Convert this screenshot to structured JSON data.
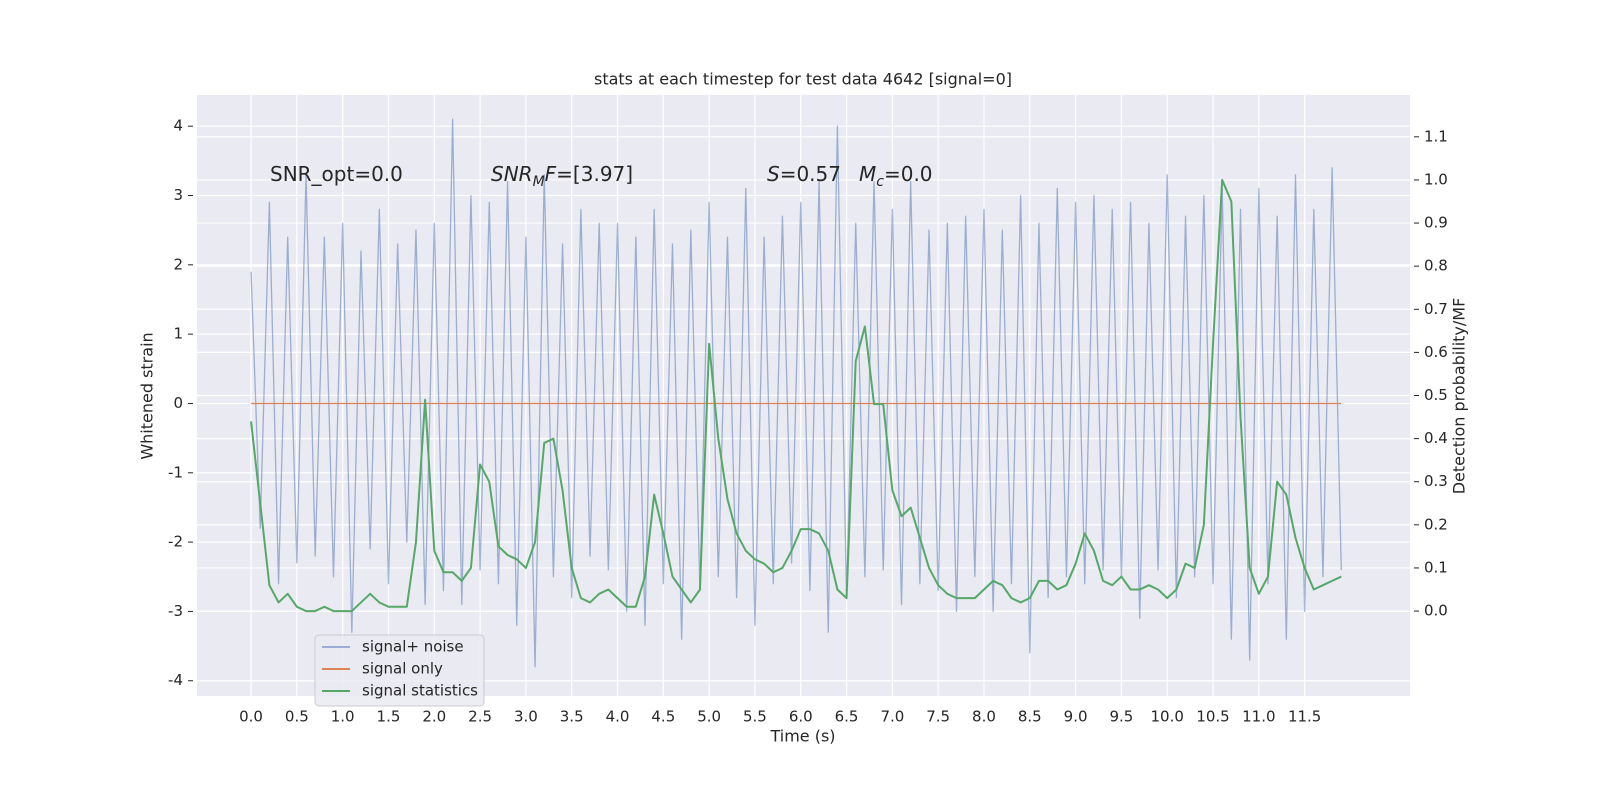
{
  "chart_data": {
    "type": "line",
    "title": "stats at each timestep for test data 4642 [signal=0]",
    "xlabel": "Time (s)",
    "ylabel": "Whitened strain",
    "y2label": "Detection probability/MF",
    "annotations": [
      [
        {
          "text": "SNR_opt=0.0"
        }
      ],
      [
        {
          "text": "SNR",
          "style": "italic"
        },
        {
          "text": "M",
          "style": "sub"
        },
        {
          "text": "F",
          "style": "italic"
        },
        {
          "text": "=[3.97]"
        }
      ],
      [
        {
          "text": "S",
          "style": "italic"
        },
        {
          "text": "=0.57"
        }
      ],
      [
        {
          "text": "M",
          "style": "italic"
        },
        {
          "text": "c",
          "style": "sub"
        },
        {
          "text": "=0.0"
        }
      ]
    ],
    "x": [
      0,
      0.1,
      0.2,
      0.3,
      0.4,
      0.5,
      0.6,
      0.7,
      0.8,
      0.9,
      1,
      1.1,
      1.2,
      1.3,
      1.4,
      1.5,
      1.6,
      1.7,
      1.8,
      1.9,
      2,
      2.1,
      2.2,
      2.3,
      2.4,
      2.5,
      2.6,
      2.7,
      2.8,
      2.9,
      3,
      3.1,
      3.2,
      3.3,
      3.4,
      3.5,
      3.6,
      3.7,
      3.8,
      3.9,
      4,
      4.1,
      4.2,
      4.3,
      4.4,
      4.5,
      4.6,
      4.7,
      4.8,
      4.9,
      5,
      5.1,
      5.2,
      5.3,
      5.4,
      5.5,
      5.6,
      5.7,
      5.8,
      5.9,
      6,
      6.1,
      6.2,
      6.3,
      6.4,
      6.5,
      6.6,
      6.7,
      6.8,
      6.9,
      7,
      7.1,
      7.2,
      7.3,
      7.4,
      7.5,
      7.6,
      7.7,
      7.8,
      7.9,
      8,
      8.1,
      8.2,
      8.3,
      8.4,
      8.5,
      8.6,
      8.7,
      8.8,
      8.9,
      9,
      9.1,
      9.2,
      9.3,
      9.4,
      9.5,
      9.6,
      9.7,
      9.8,
      9.9,
      10,
      10.1,
      10.2,
      10.3,
      10.4,
      10.5,
      10.6,
      10.7,
      10.8,
      10.9,
      11,
      11.1,
      11.2,
      11.3,
      11.4,
      11.5,
      11.6,
      11.7,
      11.8,
      11.9
    ],
    "series": [
      {
        "name": "signal+ noise",
        "color": "#4c72b0",
        "opacity": 0.5,
        "values": [
          1.9,
          -1.8,
          2.9,
          -2.6,
          2.4,
          -2.3,
          3.3,
          -2.2,
          2.4,
          -2.5,
          2.6,
          -3.3,
          2.2,
          -2.1,
          2.8,
          -2.6,
          2.3,
          -2.0,
          2.5,
          -2.9,
          2.6,
          -2.7,
          4.1,
          -2.9,
          3.0,
          -2.4,
          2.9,
          -2.6,
          3.2,
          -3.2,
          2.4,
          -3.8,
          3.3,
          -2.5,
          2.3,
          -2.8,
          2.8,
          -2.2,
          2.6,
          -2.4,
          2.6,
          -3.0,
          2.4,
          -3.2,
          2.8,
          -2.6,
          2.3,
          -3.4,
          2.5,
          -2.7,
          2.9,
          -2.5,
          2.4,
          -2.8,
          3.1,
          -3.2,
          2.4,
          -2.6,
          2.7,
          -2.3,
          2.9,
          -2.7,
          3.2,
          -3.3,
          4.0,
          -2.8,
          2.6,
          -2.5,
          3.2,
          -2.4,
          2.8,
          -2.9,
          3.2,
          -2.6,
          2.5,
          -2.7,
          2.6,
          -3.0,
          2.7,
          -2.5,
          2.8,
          -3.0,
          2.5,
          -2.6,
          3.0,
          -3.6,
          2.6,
          -2.8,
          3.1,
          -2.5,
          2.9,
          -2.6,
          3.0,
          -2.4,
          2.8,
          -2.5,
          2.9,
          -3.1,
          2.6,
          -2.4,
          3.3,
          -2.8,
          2.7,
          -2.5,
          3.0,
          -2.6,
          3.1,
          -3.4,
          2.8,
          -3.7,
          3.1,
          -2.6,
          2.7,
          -3.4,
          3.3,
          -3.0,
          2.8,
          -2.5,
          3.4,
          -2.4
        ]
      },
      {
        "name": "signal only",
        "color": "#dd8452",
        "x": [
          0,
          11.9
        ],
        "values": [
          0,
          0
        ]
      },
      {
        "name": "signal statistics",
        "color": "#55a868",
        "axis": "y2",
        "values": [
          0.44,
          0.25,
          0.06,
          0.02,
          0.04,
          0.01,
          0.0,
          0.0,
          0.01,
          0.0,
          0.0,
          0.0,
          0.02,
          0.04,
          0.02,
          0.01,
          0.01,
          0.01,
          0.16,
          0.49,
          0.14,
          0.09,
          0.09,
          0.07,
          0.1,
          0.34,
          0.3,
          0.15,
          0.13,
          0.12,
          0.1,
          0.16,
          0.39,
          0.4,
          0.28,
          0.1,
          0.03,
          0.02,
          0.04,
          0.05,
          0.03,
          0.01,
          0.01,
          0.08,
          0.27,
          0.18,
          0.08,
          0.05,
          0.02,
          0.05,
          0.62,
          0.4,
          0.26,
          0.18,
          0.14,
          0.12,
          0.11,
          0.09,
          0.1,
          0.14,
          0.19,
          0.19,
          0.18,
          0.14,
          0.05,
          0.03,
          0.58,
          0.66,
          0.48,
          0.48,
          0.28,
          0.22,
          0.24,
          0.17,
          0.1,
          0.06,
          0.04,
          0.03,
          0.03,
          0.03,
          0.05,
          0.07,
          0.06,
          0.03,
          0.02,
          0.03,
          0.07,
          0.07,
          0.05,
          0.06,
          0.11,
          0.18,
          0.14,
          0.07,
          0.06,
          0.08,
          0.05,
          0.05,
          0.06,
          0.05,
          0.03,
          0.05,
          0.11,
          0.1,
          0.2,
          0.62,
          1.0,
          0.95,
          0.45,
          0.1,
          0.04,
          0.08,
          0.3,
          0.27,
          0.17,
          0.1,
          0.05,
          0.06,
          0.07,
          0.08
        ]
      }
    ],
    "xlim": [
      -0.59,
      12.65
    ],
    "xticks": [
      {
        "value": 0,
        "label": "0.0"
      },
      0.5,
      {
        "value": 1,
        "label": "1.0"
      },
      1.5,
      {
        "value": 2,
        "label": "2.0"
      },
      2.5,
      {
        "value": 3,
        "label": "3.0"
      },
      3.5,
      {
        "value": 4,
        "label": "4.0"
      },
      4.5,
      {
        "value": 5,
        "label": "5.0"
      },
      5.5,
      {
        "value": 6,
        "label": "6.0"
      },
      6.5,
      {
        "value": 7,
        "label": "7.0"
      },
      7.5,
      {
        "value": 8,
        "label": "8.0"
      },
      8.5,
      {
        "value": 9,
        "label": "9.0"
      },
      9.5,
      {
        "value": 10,
        "label": "10.0"
      },
      10.5,
      {
        "value": 11,
        "label": "11.0"
      },
      11.5
    ],
    "ylim": [
      -4.22,
      4.45
    ],
    "yticks": [
      -4,
      -3,
      -2,
      -1,
      0,
      1,
      2,
      3,
      4
    ],
    "y2lim": [
      -0.197,
      1.197
    ],
    "y2ticks": [
      {
        "value": 0,
        "label": "0.0"
      },
      0.1,
      0.2,
      0.3,
      0.4,
      0.5,
      0.6,
      0.7,
      0.8,
      0.9,
      {
        "value": 1,
        "label": "1.0"
      },
      1.1
    ],
    "grid": true,
    "background": "#eaeaf2",
    "legend": "lower left"
  }
}
